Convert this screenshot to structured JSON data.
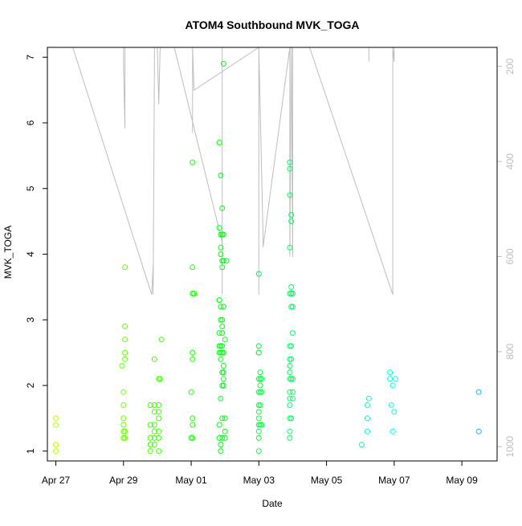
{
  "chart_data": {
    "type": "scatter",
    "title": "ATOM4 Southbound MVK_TOGA",
    "xlabel": "Date",
    "ylabel": "MVK_TOGA",
    "x_ticks": [
      "Apr 27",
      "Apr 29",
      "May 01",
      "May 03",
      "May 05",
      "May 07",
      "May 09"
    ],
    "y_ticks": [
      1,
      2,
      3,
      4,
      5,
      6,
      7
    ],
    "y2_ticks": [
      200,
      400,
      600,
      800,
      1000
    ],
    "xlim": [
      "2016-04-26T18:00",
      "2016-05-10T01:00"
    ],
    "ylim": [
      0.85,
      7.15
    ],
    "y2lim": [
      1030,
      160
    ],
    "grid": false,
    "color_scale": "hue by time: yellow-green (earliest) to blue (latest)",
    "series": [
      {
        "kind": "points",
        "points": [
          [
            "2016-04-27T00:00",
            1.0
          ],
          [
            "2016-04-27T00:00",
            1.1
          ],
          [
            "2016-04-27T00:00",
            1.4
          ],
          [
            "2016-04-27T00:00",
            1.5
          ],
          [
            "2016-04-29T00:00",
            1.2
          ],
          [
            "2016-04-29T00:00",
            1.2
          ],
          [
            "2016-04-29T00:00",
            1.3
          ],
          [
            "2016-04-29T00:00",
            1.4
          ],
          [
            "2016-04-29T00:00",
            1.5
          ],
          [
            "2016-04-29T00:00",
            1.7
          ],
          [
            "2016-04-29T00:00",
            1.9
          ],
          [
            "2016-04-28T23:00",
            2.3
          ],
          [
            "2016-04-29T01:00",
            2.4
          ],
          [
            "2016-04-29T01:00",
            2.5
          ],
          [
            "2016-04-29T01:00",
            2.7
          ],
          [
            "2016-04-29T01:00",
            2.9
          ],
          [
            "2016-04-29T01:00",
            3.8
          ],
          [
            "2016-04-29T01:00",
            1.2
          ],
          [
            "2016-04-29T01:00",
            1.3
          ],
          [
            "2016-04-29T19:00",
            1.0
          ],
          [
            "2016-04-29T19:00",
            1.1
          ],
          [
            "2016-04-29T19:00",
            1.2
          ],
          [
            "2016-04-29T19:00",
            1.4
          ],
          [
            "2016-04-29T19:00",
            1.7
          ],
          [
            "2016-04-29T22:00",
            1.1
          ],
          [
            "2016-04-29T22:00",
            1.2
          ],
          [
            "2016-04-29T22:00",
            1.3
          ],
          [
            "2016-04-29T22:00",
            1.4
          ],
          [
            "2016-04-29T22:00",
            1.6
          ],
          [
            "2016-04-29T22:00",
            1.7
          ],
          [
            "2016-04-29T22:00",
            2.4
          ],
          [
            "2016-04-30T01:00",
            1.0
          ],
          [
            "2016-04-30T01:00",
            1.2
          ],
          [
            "2016-04-30T01:00",
            1.3
          ],
          [
            "2016-04-30T01:00",
            1.5
          ],
          [
            "2016-04-30T01:00",
            1.6
          ],
          [
            "2016-04-30T01:00",
            1.7
          ],
          [
            "2016-04-30T01:00",
            2.1
          ],
          [
            "2016-04-30T02:00",
            2.1
          ],
          [
            "2016-04-30T03:00",
            2.7
          ],
          [
            "2016-05-01T00:00",
            1.2
          ],
          [
            "2016-05-01T00:00",
            1.9
          ],
          [
            "2016-05-01T01:00",
            1.2
          ],
          [
            "2016-05-01T01:00",
            1.4
          ],
          [
            "2016-05-01T01:00",
            1.5
          ],
          [
            "2016-05-01T01:00",
            2.4
          ],
          [
            "2016-05-01T01:00",
            2.5
          ],
          [
            "2016-05-01T01:00",
            3.4
          ],
          [
            "2016-05-01T02:00",
            3.4
          ],
          [
            "2016-05-01T01:00",
            3.8
          ],
          [
            "2016-05-01T01:00",
            5.4
          ],
          [
            "2016-05-01T20:00",
            1.2
          ],
          [
            "2016-05-01T20:00",
            1.4
          ],
          [
            "2016-05-01T20:00",
            2.5
          ],
          [
            "2016-05-01T20:00",
            2.6
          ],
          [
            "2016-05-01T20:00",
            2.8
          ],
          [
            "2016-05-01T20:00",
            3.3
          ],
          [
            "2016-05-01T20:00",
            3.3
          ],
          [
            "2016-05-01T20:00",
            4.4
          ],
          [
            "2016-05-01T20:00",
            5.7
          ],
          [
            "2016-05-01T21:00",
            1.0
          ],
          [
            "2016-05-01T21:00",
            1.1
          ],
          [
            "2016-05-01T21:00",
            1.8
          ],
          [
            "2016-05-01T21:00",
            2.4
          ],
          [
            "2016-05-01T21:00",
            2.5
          ],
          [
            "2016-05-01T21:00",
            2.6
          ],
          [
            "2016-05-01T21:00",
            3.0
          ],
          [
            "2016-05-01T21:00",
            3.2
          ],
          [
            "2016-05-01T21:00",
            4.0
          ],
          [
            "2016-05-01T21:00",
            4.1
          ],
          [
            "2016-05-01T21:00",
            4.3
          ],
          [
            "2016-05-01T21:00",
            5.2
          ],
          [
            "2016-05-01T22:00",
            1.2
          ],
          [
            "2016-05-01T22:00",
            1.5
          ],
          [
            "2016-05-01T22:00",
            2.0
          ],
          [
            "2016-05-01T22:00",
            2.2
          ],
          [
            "2016-05-01T22:00",
            2.5
          ],
          [
            "2016-05-01T22:00",
            2.6
          ],
          [
            "2016-05-01T22:00",
            2.8
          ],
          [
            "2016-05-01T22:00",
            2.9
          ],
          [
            "2016-05-01T22:00",
            3.0
          ],
          [
            "2016-05-01T22:00",
            3.8
          ],
          [
            "2016-05-01T22:00",
            3.9
          ],
          [
            "2016-05-01T22:00",
            4.3
          ],
          [
            "2016-05-01T22:00",
            4.7
          ],
          [
            "2016-05-01T23:00",
            2.0
          ],
          [
            "2016-05-01T23:00",
            2.1
          ],
          [
            "2016-05-01T23:00",
            2.2
          ],
          [
            "2016-05-01T23:00",
            2.3
          ],
          [
            "2016-05-01T23:00",
            2.5
          ],
          [
            "2016-05-01T23:00",
            3.2
          ],
          [
            "2016-05-01T23:00",
            3.9
          ],
          [
            "2016-05-01T23:00",
            4.3
          ],
          [
            "2016-05-01T23:00",
            6.9
          ],
          [
            "2016-05-02T00:00",
            1.2
          ],
          [
            "2016-05-02T00:00",
            1.3
          ],
          [
            "2016-05-02T00:00",
            1.5
          ],
          [
            "2016-05-02T00:00",
            2.7
          ],
          [
            "2016-05-02T01:00",
            3.9
          ],
          [
            "2016-05-03T00:00",
            1.0
          ],
          [
            "2016-05-03T00:00",
            1.2
          ],
          [
            "2016-05-03T00:00",
            1.3
          ],
          [
            "2016-05-03T00:00",
            1.4
          ],
          [
            "2016-05-03T00:00",
            1.5
          ],
          [
            "2016-05-03T00:00",
            1.6
          ],
          [
            "2016-05-03T00:00",
            1.7
          ],
          [
            "2016-05-03T00:00",
            1.9
          ],
          [
            "2016-05-03T00:00",
            2.1
          ],
          [
            "2016-05-03T00:00",
            2.5
          ],
          [
            "2016-05-03T00:00",
            2.6
          ],
          [
            "2016-05-03T00:00",
            3.7
          ],
          [
            "2016-05-03T01:00",
            1.4
          ],
          [
            "2016-05-03T01:00",
            1.7
          ],
          [
            "2016-05-03T01:00",
            1.9
          ],
          [
            "2016-05-03T01:00",
            2.0
          ],
          [
            "2016-05-03T01:00",
            2.1
          ],
          [
            "2016-05-03T01:00",
            2.2
          ],
          [
            "2016-05-03T02:00",
            1.4
          ],
          [
            "2016-05-03T02:00",
            1.9
          ],
          [
            "2016-05-03T02:00",
            2.1
          ],
          [
            "2016-05-03T00:00",
            2.5
          ],
          [
            "2016-05-03T22:00",
            1.2
          ],
          [
            "2016-05-03T22:00",
            1.3
          ],
          [
            "2016-05-03T22:00",
            1.5
          ],
          [
            "2016-05-03T22:00",
            1.7
          ],
          [
            "2016-05-03T22:00",
            1.8
          ],
          [
            "2016-05-03T22:00",
            1.9
          ],
          [
            "2016-05-03T22:00",
            2.1
          ],
          [
            "2016-05-03T22:00",
            2.2
          ],
          [
            "2016-05-03T22:00",
            2.3
          ],
          [
            "2016-05-03T22:00",
            2.4
          ],
          [
            "2016-05-03T22:00",
            2.6
          ],
          [
            "2016-05-03T22:00",
            3.4
          ],
          [
            "2016-05-03T22:00",
            4.1
          ],
          [
            "2016-05-03T22:00",
            4.9
          ],
          [
            "2016-05-03T22:00",
            5.3
          ],
          [
            "2016-05-03T22:00",
            5.4
          ],
          [
            "2016-05-03T23:00",
            1.5
          ],
          [
            "2016-05-03T23:00",
            2.1
          ],
          [
            "2016-05-03T23:00",
            2.4
          ],
          [
            "2016-05-03T23:00",
            2.6
          ],
          [
            "2016-05-03T23:00",
            3.2
          ],
          [
            "2016-05-03T23:00",
            3.4
          ],
          [
            "2016-05-03T23:00",
            3.5
          ],
          [
            "2016-05-03T23:00",
            4.5
          ],
          [
            "2016-05-03T23:00",
            4.6
          ],
          [
            "2016-05-04T00:00",
            1.8
          ],
          [
            "2016-05-04T00:00",
            1.9
          ],
          [
            "2016-05-04T00:00",
            2.1
          ],
          [
            "2016-05-04T00:00",
            2.8
          ],
          [
            "2016-05-04T00:00",
            3.2
          ],
          [
            "2016-05-04T00:00",
            3.4
          ],
          [
            "2016-05-06T01:00",
            1.1
          ],
          [
            "2016-05-06T05:00",
            1.3
          ],
          [
            "2016-05-06T05:00",
            1.5
          ],
          [
            "2016-05-06T05:00",
            1.7
          ],
          [
            "2016-05-06T06:00",
            1.8
          ],
          [
            "2016-05-06T21:00",
            2.2
          ],
          [
            "2016-05-06T21:00",
            2.1
          ],
          [
            "2016-05-06T22:00",
            1.7
          ],
          [
            "2016-05-06T23:00",
            2.0
          ],
          [
            "2016-05-06T23:00",
            1.3
          ],
          [
            "2016-05-07T00:00",
            1.6
          ],
          [
            "2016-05-07T01:00",
            2.1
          ],
          [
            "2016-05-09T12:00",
            1.3
          ],
          [
            "2016-05-09T12:00",
            1.9
          ]
        ]
      },
      {
        "kind": "line",
        "axis": "right",
        "color": "#bebebe",
        "points": [
          [
            "2016-04-27T12:00",
            160
          ],
          [
            "2016-04-29T20:00",
            680
          ],
          [
            "2016-04-29T21:00",
            620
          ],
          [
            "2016-04-29T21:00",
            680
          ],
          [
            "2016-04-29T22:00",
            160
          ],
          [
            "2016-04-30T00:00",
            160
          ],
          [
            "2016-04-30T01:00",
            280
          ],
          [
            "2016-04-30T02:00",
            160
          ],
          [
            "2016-04-29T00:00",
            160
          ],
          [
            "2016-04-29T00:00",
            200
          ],
          [
            "2016-04-29T01:00",
            330
          ],
          [
            "2016-04-29T01:00",
            160
          ],
          [
            "2016-04-30T12:00",
            160
          ],
          [
            "2016-05-01T22:00",
            570
          ],
          [
            "2016-05-01T22:00",
            680
          ],
          [
            "2016-05-01T22:00",
            160
          ],
          [
            "2016-05-01T01:00",
            160
          ],
          [
            "2016-05-01T01:00",
            340
          ],
          [
            "2016-05-01T01:00",
            160
          ],
          [
            "2016-05-01T02:00",
            250
          ],
          [
            "2016-05-03T00:00",
            160
          ],
          [
            "2016-05-03T00:00",
            345
          ],
          [
            "2016-05-03T00:00",
            680
          ],
          [
            "2016-05-03T00:00",
            160
          ],
          [
            "2016-05-03T03:00",
            560
          ],
          [
            "2016-05-03T03:00",
            580
          ],
          [
            "2016-05-03T22:00",
            160
          ],
          [
            "2016-05-03T22:00",
            600
          ],
          [
            "2016-05-03T23:00",
            160
          ],
          [
            "2016-05-04T00:00",
            600
          ],
          [
            "2016-05-04T00:00",
            160
          ],
          [
            "2016-05-04T12:00",
            160
          ],
          [
            "2016-05-06T23:00",
            680
          ],
          [
            "2016-05-06T23:00",
            160
          ],
          [
            "2016-05-07T00:00",
            190
          ],
          [
            "2016-05-07T00:00",
            160
          ],
          [
            "2016-05-06T06:00",
            160
          ],
          [
            "2016-05-06T06:00",
            190
          ]
        ]
      }
    ]
  }
}
